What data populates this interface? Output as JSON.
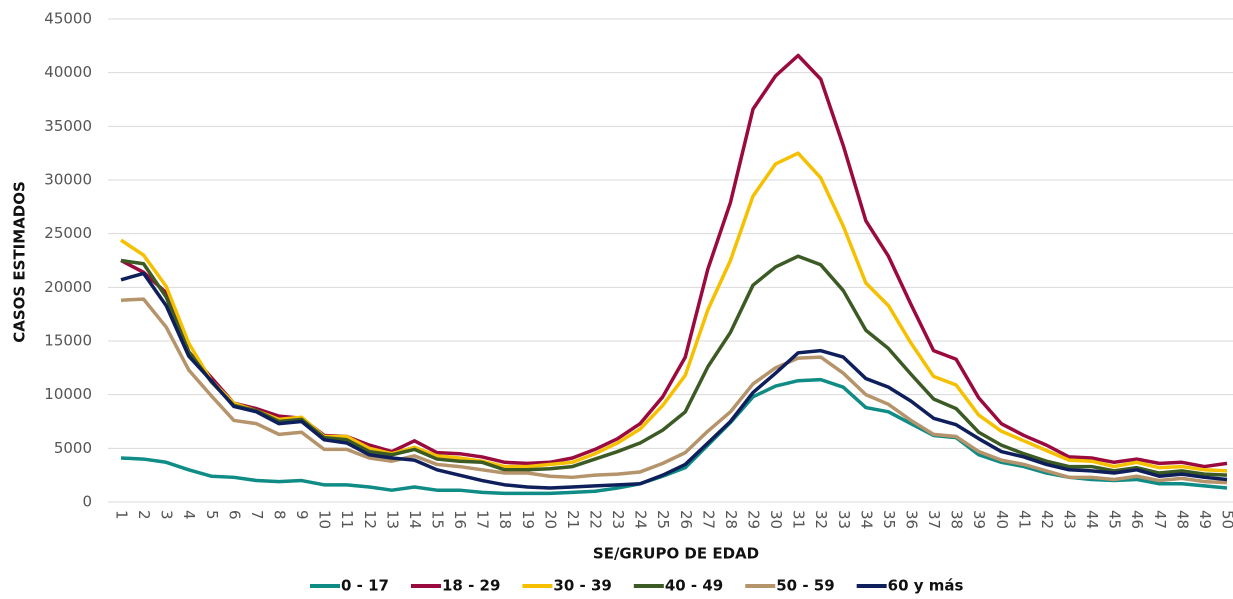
{
  "chart_data": {
    "type": "line",
    "y_label": "CASOS ESTIMADOS",
    "x_label": "SE/GRUPO DE EDAD",
    "categories": [
      "1",
      "2",
      "3",
      "4",
      "5",
      "6",
      "7",
      "8",
      "9",
      "10",
      "11",
      "12",
      "13",
      "14",
      "15",
      "16",
      "17",
      "18",
      "19",
      "20",
      "21",
      "22",
      "23",
      "24",
      "25",
      "26",
      "27",
      "28",
      "29",
      "30",
      "31",
      "32",
      "33",
      "34",
      "35",
      "36",
      "37",
      "38",
      "39",
      "40",
      "41",
      "42",
      "43",
      "44",
      "45",
      "46",
      "47",
      "48",
      "49",
      "50"
    ],
    "ylim": [
      0,
      45000
    ],
    "yticks": [
      0,
      5000,
      10000,
      15000,
      20000,
      25000,
      30000,
      35000,
      40000,
      45000
    ],
    "grid": true,
    "legend": "bottom",
    "series": [
      {
        "name": "0 - 17",
        "color": "#0e8c85",
        "values": [
          4100,
          4000,
          3700,
          3000,
          2400,
          2300,
          2000,
          1900,
          2000,
          1600,
          1600,
          1400,
          1100,
          1400,
          1100,
          1100,
          900,
          800,
          800,
          800,
          900,
          1000,
          1300,
          1700,
          2400,
          3200,
          5300,
          7400,
          9800,
          10800,
          11300,
          11400,
          10700,
          8800,
          8400,
          7300,
          6200,
          6000,
          4400,
          3700,
          3300,
          2700,
          2300,
          2100,
          2000,
          2100,
          1700,
          1700,
          1500,
          1300
        ]
      },
      {
        "name": "18 - 29",
        "color": "#9b0a3e",
        "values": [
          22500,
          21400,
          19500,
          14000,
          11600,
          9200,
          8700,
          8000,
          7800,
          6200,
          6100,
          5300,
          4700,
          5700,
          4600,
          4500,
          4200,
          3700,
          3600,
          3700,
          4100,
          4900,
          5900,
          7300,
          9800,
          13500,
          21700,
          27900,
          36600,
          39700,
          41600,
          39400,
          33200,
          26200,
          22900,
          18400,
          14100,
          13300,
          9700,
          7300,
          6200,
          5300,
          4200,
          4100,
          3700,
          4000,
          3600,
          3700,
          3300,
          3600
        ]
      },
      {
        "name": "30 - 39",
        "color": "#f5c000",
        "values": [
          24400,
          23000,
          20100,
          14800,
          11300,
          9200,
          8500,
          7700,
          7900,
          6100,
          6100,
          5000,
          4500,
          5100,
          4300,
          4100,
          3800,
          3300,
          3300,
          3500,
          3700,
          4500,
          5500,
          6800,
          9000,
          11800,
          17900,
          22500,
          28500,
          31500,
          32500,
          30200,
          25700,
          20400,
          18300,
          14800,
          11700,
          10900,
          8100,
          6600,
          5700,
          4800,
          3900,
          3800,
          3300,
          3700,
          3200,
          3300,
          3000,
          2900
        ]
      },
      {
        "name": "40 - 49",
        "color": "#3c5a24",
        "values": [
          22500,
          22200,
          19100,
          14000,
          11200,
          9000,
          8500,
          7500,
          7700,
          6000,
          5800,
          4700,
          4400,
          4900,
          4000,
          3800,
          3700,
          3000,
          3000,
          3100,
          3300,
          4000,
          4700,
          5500,
          6700,
          8400,
          12600,
          15800,
          20200,
          21900,
          22900,
          22100,
          19700,
          16000,
          14300,
          11900,
          9600,
          8700,
          6500,
          5300,
          4500,
          3800,
          3300,
          3300,
          2900,
          3200,
          2700,
          2900,
          2600,
          2500
        ]
      },
      {
        "name": "50 - 59",
        "color": "#b5936b",
        "values": [
          18800,
          18900,
          16300,
          12300,
          9900,
          7600,
          7300,
          6300,
          6500,
          4900,
          4900,
          4100,
          3800,
          4300,
          3500,
          3300,
          3000,
          2700,
          2700,
          2400,
          2300,
          2500,
          2600,
          2800,
          3600,
          4600,
          6600,
          8400,
          11000,
          12500,
          13400,
          13500,
          12000,
          10000,
          9100,
          7600,
          6300,
          6100,
          4700,
          3900,
          3500,
          2900,
          2300,
          2300,
          2100,
          2400,
          2000,
          2200,
          1900,
          1800
        ]
      },
      {
        "name": "60 y más",
        "color": "#0f1f5c",
        "values": [
          20700,
          21300,
          18300,
          13600,
          11300,
          8900,
          8400,
          7300,
          7500,
          5800,
          5500,
          4400,
          4100,
          3900,
          3000,
          2500,
          2000,
          1600,
          1400,
          1300,
          1400,
          1500,
          1600,
          1700,
          2500,
          3500,
          5500,
          7500,
          10200,
          12000,
          13900,
          14100,
          13500,
          11500,
          10700,
          9400,
          7800,
          7200,
          5900,
          4700,
          4200,
          3500,
          3000,
          2900,
          2700,
          3000,
          2400,
          2600,
          2300,
          2100
        ]
      }
    ]
  }
}
